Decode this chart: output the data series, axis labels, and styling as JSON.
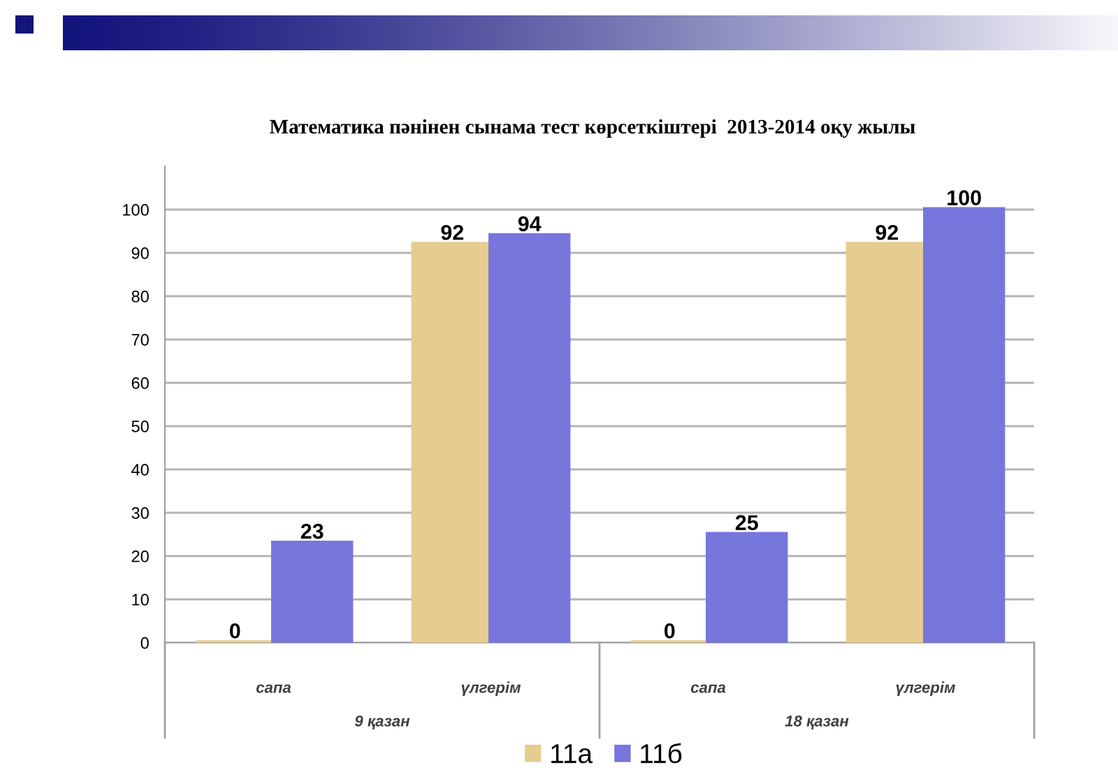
{
  "chart_data": {
    "type": "bar",
    "title": "Математика пәнінен сынама тест көрсеткіштері  2013-2014 оқу жылы",
    "categories": [
      "сапа",
      "үлгерім",
      "сапа",
      "үлгерім"
    ],
    "series": [
      {
        "name": "11а",
        "color": "#e6cc8f",
        "values": [
          0,
          92,
          0,
          92
        ]
      },
      {
        "name": "11б",
        "color": "#7676dc",
        "values": [
          23,
          94,
          25,
          100
        ]
      }
    ],
    "annotations": [
      "9 қазан",
      "18 қазан"
    ],
    "ylim": [
      0,
      110
    ],
    "yticks": [
      0,
      10,
      20,
      30,
      40,
      50,
      60,
      70,
      80,
      90,
      100
    ],
    "grid": "y",
    "legend": "bottom",
    "data_labels": true
  }
}
